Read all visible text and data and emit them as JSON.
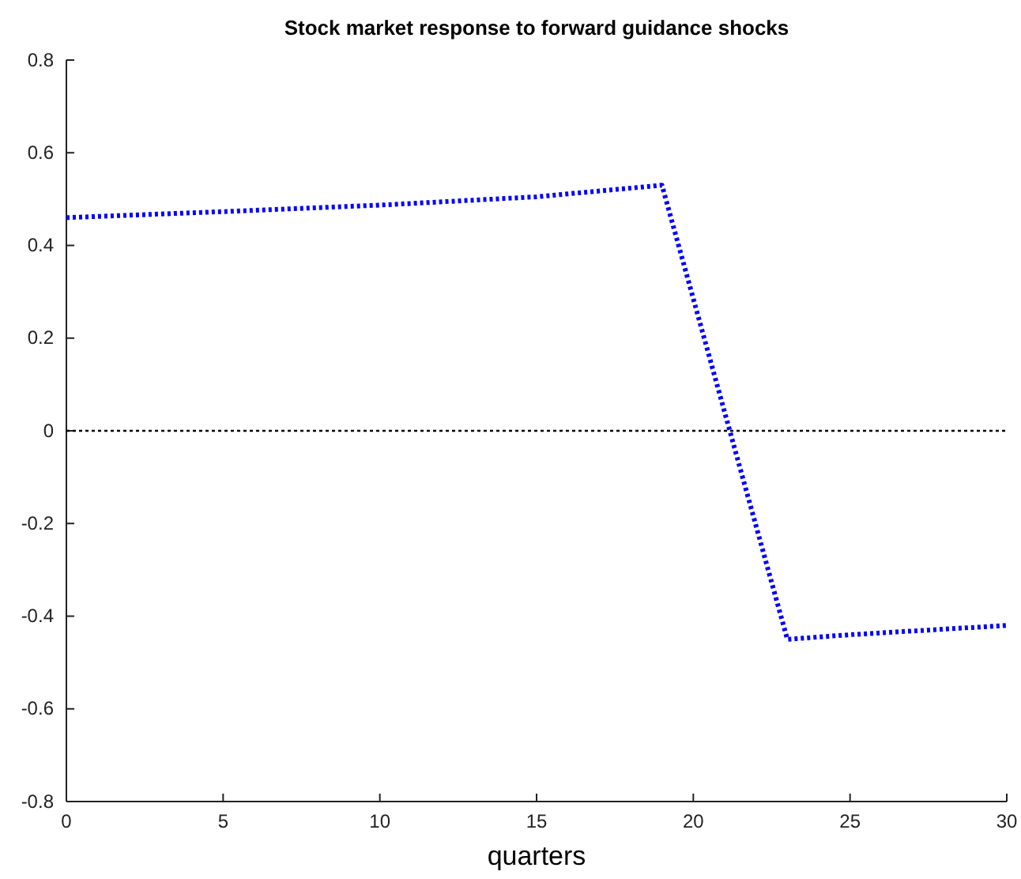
{
  "chart_data": {
    "type": "line",
    "title": "Stock market response to forward guidance shocks",
    "xlabel": "quarters",
    "x": [
      0,
      5,
      10,
      15,
      19,
      23,
      25,
      30
    ],
    "series": [
      {
        "color": "#0000ff",
        "values": [
          0.46,
          0.473,
          0.487,
          0.505,
          0.53,
          -0.45,
          -0.44,
          -0.42
        ]
      }
    ],
    "xlim": [
      0,
      30
    ],
    "xticks": [
      0,
      5,
      10,
      15,
      20,
      25,
      30
    ],
    "ylim": [
      -0.8,
      0.8
    ],
    "yticks": [
      -0.8,
      -0.6,
      -0.4,
      -0.2,
      0,
      0.2,
      0.4,
      0.6,
      0.8
    ],
    "ref_lines": [
      {
        "axis": "y",
        "value": 0,
        "color": "#000000",
        "line_style": "dotted"
      }
    ],
    "line_style": "dotted",
    "marker": "none"
  }
}
